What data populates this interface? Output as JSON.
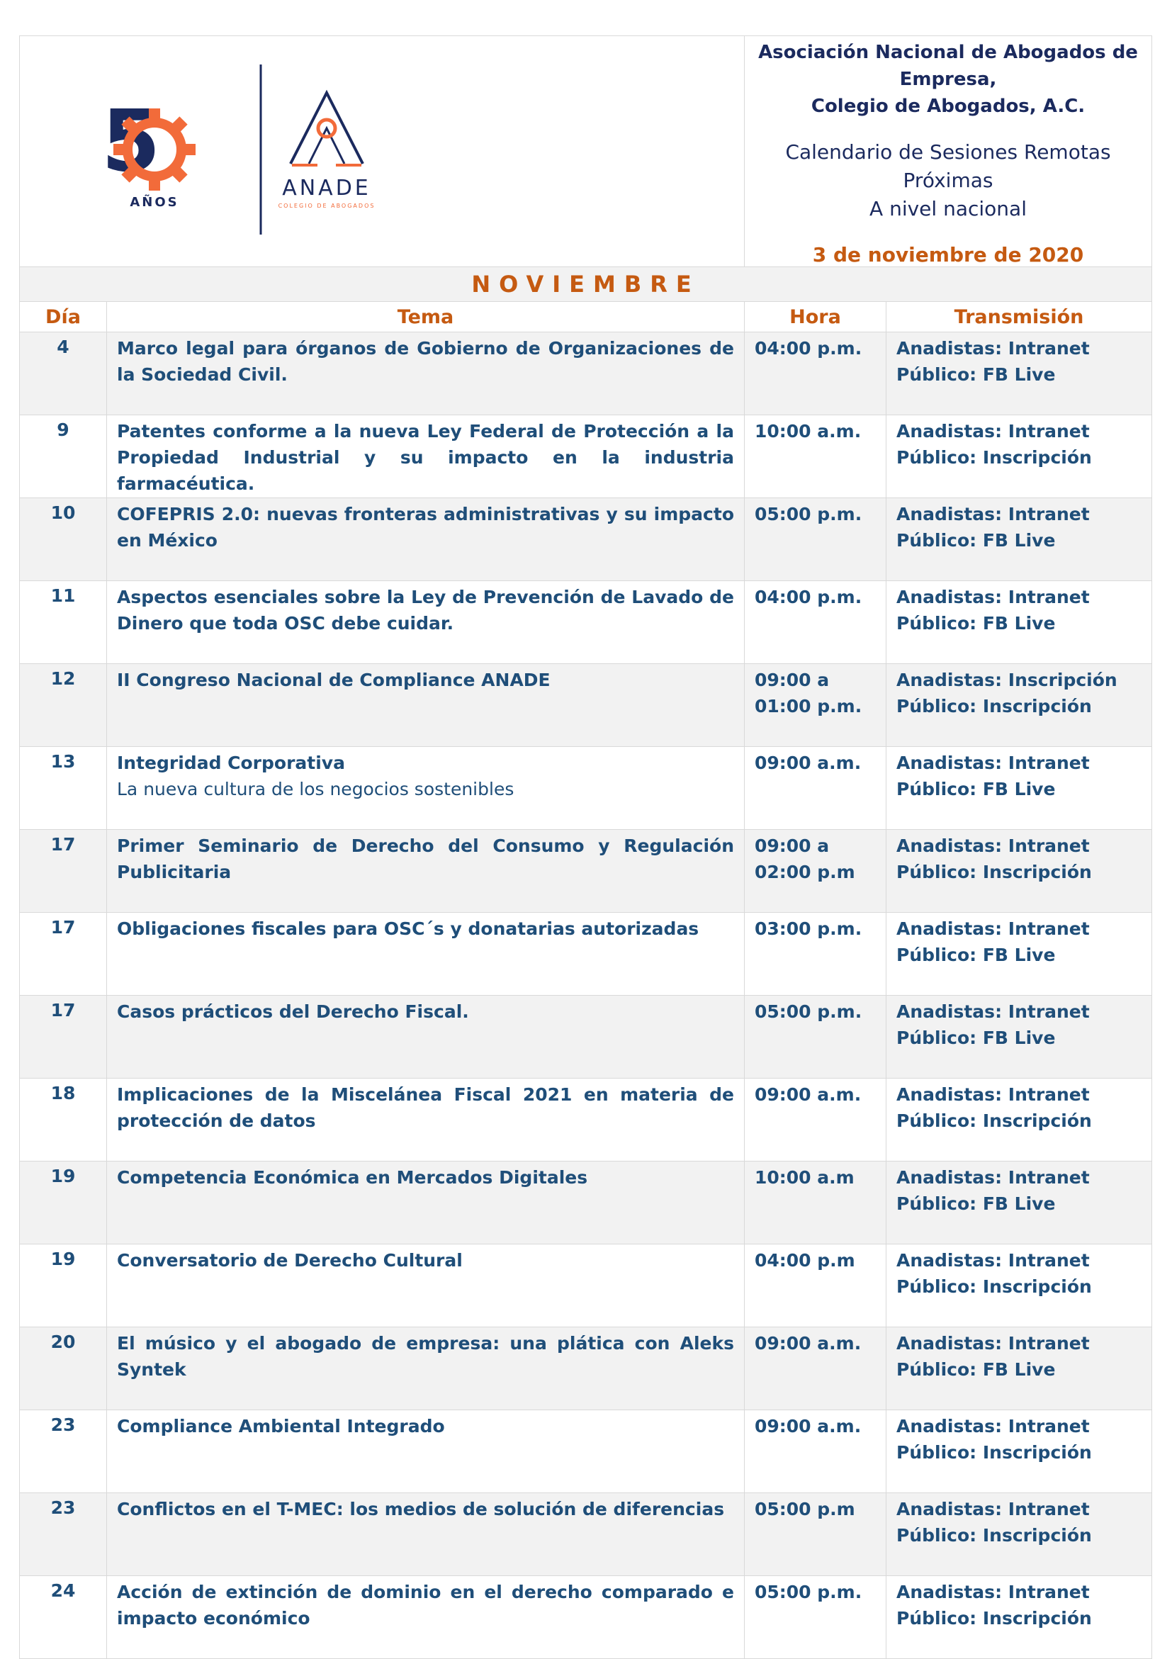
{
  "header": {
    "logo_50": {
      "number": "5",
      "label": "AÑOS"
    },
    "logo_anade": {
      "name": "ANADE",
      "tagline": "COLEGIO DE ABOGADOS"
    },
    "org_line1": "Asociación Nacional de Abogados de Empresa,",
    "org_line2": "Colegio de Abogados, A.C.",
    "subtitle_line1": "Calendario de Sesiones Remotas Próximas",
    "subtitle_line2": "A nivel nacional",
    "date": "3 de noviembre de 2020"
  },
  "colors": {
    "blue": "#1f4e79",
    "orange": "#c55a11",
    "navy": "#1b2a5e"
  },
  "month": "NOVIEMBRE",
  "columns": [
    "Día",
    "Tema",
    "Hora",
    "Transmisión"
  ],
  "rows": [
    {
      "dia": "4",
      "tema": "Marco legal para órganos de Gobierno de Organizaciones de la Sociedad Civil.",
      "tema_sub": "",
      "hora": "04:00 p.m.",
      "anadistas": "Anadistas: Intranet",
      "publico": "Público: FB Live"
    },
    {
      "dia": "9",
      "tema": "Patentes conforme a la nueva Ley Federal de Protección a la Propiedad Industrial y su impacto en la industria farmacéutica.",
      "tema_sub": "",
      "hora": "10:00 a.m.",
      "anadistas": "Anadistas: Intranet",
      "publico": "Público: Inscripción"
    },
    {
      "dia": "10",
      "tema": "COFEPRIS 2.0: nuevas fronteras administrativas y su impacto en México",
      "tema_sub": "",
      "hora": "05:00 p.m.",
      "anadistas": "Anadistas: Intranet",
      "publico": "Público: FB Live"
    },
    {
      "dia": "11",
      "tema": "Aspectos esenciales sobre la Ley de Prevención de Lavado de Dinero que toda OSC debe cuidar.",
      "tema_sub": "",
      "hora": "04:00 p.m.",
      "anadistas": "Anadistas: Intranet",
      "publico": "Público: FB Live"
    },
    {
      "dia": "12",
      "tema": "II Congreso Nacional de Compliance ANADE",
      "tema_sub": "",
      "hora": "09:00 a 01:00 p.m.",
      "anadistas": "Anadistas: Inscripción",
      "publico": "Público: Inscripción"
    },
    {
      "dia": "13",
      "tema": "Integridad Corporativa",
      "tema_sub": "La nueva cultura de los negocios sostenibles",
      "hora": "09:00 a.m.",
      "anadistas": "Anadistas: Intranet",
      "publico": "Público: FB Live"
    },
    {
      "dia": "17",
      "tema": "Primer Seminario de Derecho del Consumo y Regulación Publicitaria",
      "tema_sub": "",
      "hora": "09:00 a 02:00 p.m",
      "anadistas": "Anadistas: Intranet",
      "publico": "Público: Inscripción"
    },
    {
      "dia": "17",
      "tema": "Obligaciones fiscales para OSC´s y donatarias autorizadas",
      "tema_sub": "",
      "hora": "03:00 p.m.",
      "anadistas": "Anadistas: Intranet",
      "publico": "Público: FB Live"
    },
    {
      "dia": "17",
      "tema": "Casos prácticos del Derecho Fiscal.",
      "tema_sub": "",
      "hora": "05:00 p.m.",
      "anadistas": "Anadistas: Intranet",
      "publico": "Público: FB Live"
    },
    {
      "dia": "18",
      "tema": "Implicaciones de la Miscelánea Fiscal 2021 en materia de protección de datos",
      "tema_sub": "",
      "hora": "09:00 a.m.",
      "anadistas": "Anadistas: Intranet",
      "publico": "Público: Inscripción"
    },
    {
      "dia": "19",
      "tema": "Competencia Económica en Mercados Digitales",
      "tema_sub": "",
      "hora": "10:00 a.m",
      "anadistas": "Anadistas: Intranet",
      "publico": "Público: FB Live"
    },
    {
      "dia": "19",
      "tema": "Conversatorio de Derecho Cultural",
      "tema_sub": "",
      "hora": "04:00 p.m",
      "anadistas": "Anadistas: Intranet",
      "publico": "Público: Inscripción"
    },
    {
      "dia": "20",
      "tema": "El músico y el abogado de empresa: una plática con Aleks Syntek",
      "tema_sub": "",
      "hora": "09:00 a.m.",
      "anadistas": "Anadistas: Intranet",
      "publico": "Público: FB Live"
    },
    {
      "dia": "23",
      "tema": "Compliance Ambiental Integrado",
      "tema_sub": "",
      "hora": "09:00 a.m.",
      "anadistas": "Anadistas: Intranet",
      "publico": "Público: Inscripción"
    },
    {
      "dia": "23",
      "tema": "Conflictos en el T-MEC: los medios de solución de diferencias",
      "tema_sub": "",
      "hora": "05:00 p.m",
      "anadistas": "Anadistas: Intranet",
      "publico": "Público: Inscripción"
    },
    {
      "dia": "24",
      "tema": "Acción de extinción de dominio en el derecho comparado e impacto económico",
      "tema_sub": "",
      "hora": "05:00 p.m.",
      "anadistas": "Anadistas: Intranet",
      "publico": "Público: Inscripción"
    }
  ]
}
